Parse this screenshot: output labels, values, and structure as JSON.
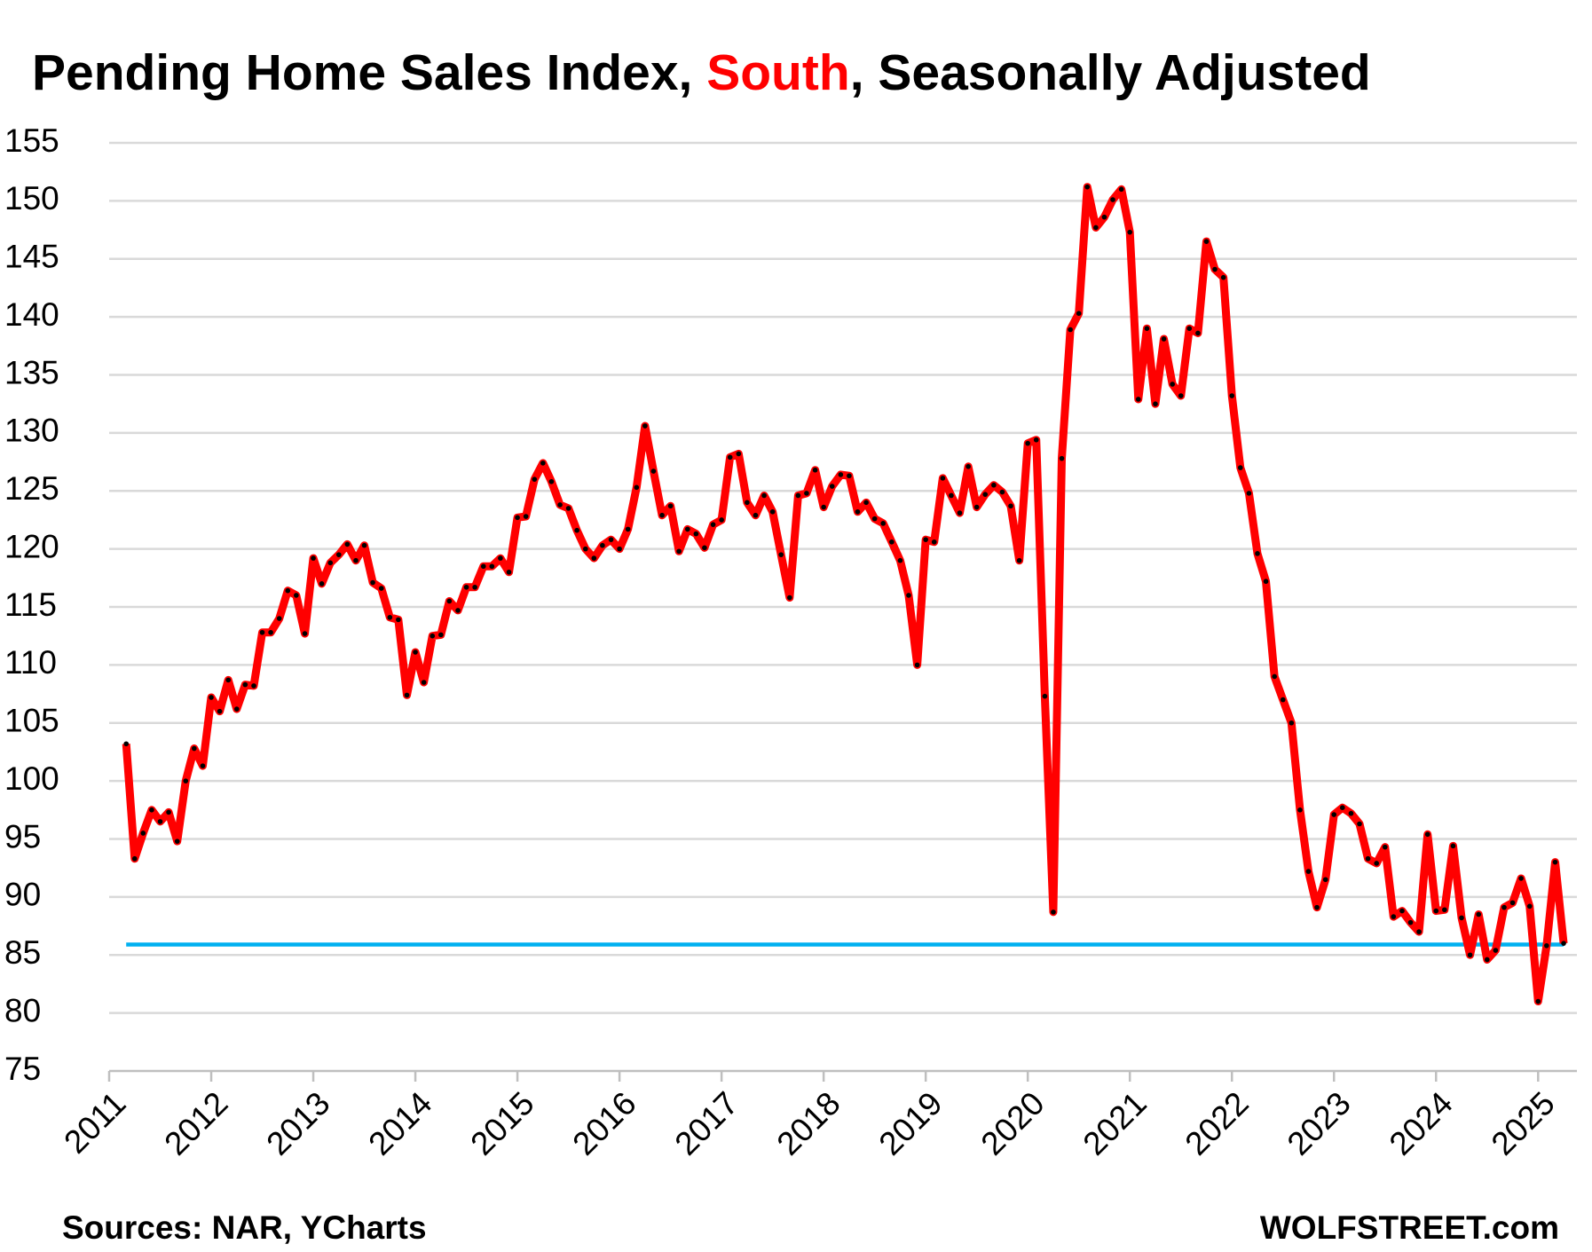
{
  "chart_data": {
    "type": "line",
    "title": [
      {
        "text": "Pending Home Sales Index, ",
        "color": "#000000"
      },
      {
        "text": "South",
        "color": "#ff0000"
      },
      {
        "text": ", Seasonally Adjusted",
        "color": "#000000"
      }
    ],
    "source": "Sources: NAR, YCharts",
    "credit": "WOLFSTREET.com",
    "xlim": [
      2011,
      2025.38
    ],
    "xticks": [
      2011,
      2012,
      2013,
      2014,
      2015,
      2016,
      2017,
      2018,
      2019,
      2020,
      2021,
      2022,
      2023,
      2024,
      2025
    ],
    "ylim": [
      75,
      155
    ],
    "yticks": [
      75,
      80,
      85,
      90,
      95,
      100,
      105,
      110,
      115,
      120,
      125,
      130,
      135,
      140,
      145,
      150,
      155
    ],
    "grid": true,
    "reference_line": {
      "value": 85.9,
      "color": "#00b0f0"
    },
    "x": [
      2011.167,
      2011.25,
      2011.333,
      2011.417,
      2011.5,
      2011.583,
      2011.667,
      2011.75,
      2011.833,
      2011.917,
      2012,
      2012.083,
      2012.167,
      2012.25,
      2012.333,
      2012.417,
      2012.5,
      2012.583,
      2012.667,
      2012.75,
      2012.833,
      2012.917,
      2013,
      2013.083,
      2013.167,
      2013.25,
      2013.333,
      2013.417,
      2013.5,
      2013.583,
      2013.667,
      2013.75,
      2013.833,
      2013.917,
      2014,
      2014.083,
      2014.167,
      2014.25,
      2014.333,
      2014.417,
      2014.5,
      2014.583,
      2014.667,
      2014.75,
      2014.833,
      2014.917,
      2015,
      2015.083,
      2015.167,
      2015.25,
      2015.333,
      2015.417,
      2015.5,
      2015.583,
      2015.667,
      2015.75,
      2015.833,
      2015.917,
      2016,
      2016.083,
      2016.167,
      2016.25,
      2016.333,
      2016.417,
      2016.5,
      2016.583,
      2016.667,
      2016.75,
      2016.833,
      2016.917,
      2017,
      2017.083,
      2017.167,
      2017.25,
      2017.333,
      2017.417,
      2017.5,
      2017.583,
      2017.667,
      2017.75,
      2017.833,
      2017.917,
      2018,
      2018.083,
      2018.167,
      2018.25,
      2018.333,
      2018.417,
      2018.5,
      2018.583,
      2018.667,
      2018.75,
      2018.833,
      2018.917,
      2019,
      2019.083,
      2019.167,
      2019.25,
      2019.333,
      2019.417,
      2019.5,
      2019.583,
      2019.667,
      2019.75,
      2019.833,
      2019.917,
      2020,
      2020.083,
      2020.167,
      2020.25,
      2020.333,
      2020.417,
      2020.5,
      2020.583,
      2020.667,
      2020.75,
      2020.833,
      2020.917,
      2021,
      2021.083,
      2021.167,
      2021.25,
      2021.333,
      2021.417,
      2021.5,
      2021.583,
      2021.667,
      2021.75,
      2021.833,
      2021.917,
      2022,
      2022.083,
      2022.167,
      2022.25,
      2022.333,
      2022.417,
      2022.5,
      2022.583,
      2022.667,
      2022.75,
      2022.833,
      2022.917,
      2023,
      2023.083,
      2023.167,
      2023.25,
      2023.333,
      2023.417,
      2023.5,
      2023.583,
      2023.667,
      2023.75,
      2023.833,
      2023.917,
      2024,
      2024.083,
      2024.167,
      2024.25,
      2024.333,
      2024.417,
      2024.5,
      2024.583,
      2024.667,
      2024.75,
      2024.833,
      2024.917,
      2025,
      2025.083,
      2025.167,
      2025.25
    ],
    "series": [
      {
        "name": "South",
        "color": "#ff0000",
        "marker_color": "#000000",
        "values": [
          103.2,
          93.3,
          95.5,
          97.5,
          96.5,
          97.3,
          94.8,
          100,
          102.8,
          101.3,
          107.2,
          106,
          108.7,
          106.2,
          108.3,
          108.2,
          112.8,
          112.8,
          114,
          116.4,
          116,
          112.7,
          119.2,
          117,
          118.8,
          119.5,
          120.4,
          119,
          120.3,
          117.1,
          116.6,
          114.1,
          113.9,
          107.4,
          111.1,
          108.5,
          112.5,
          112.6,
          115.5,
          114.7,
          116.7,
          116.7,
          118.5,
          118.5,
          119.2,
          118,
          122.7,
          122.8,
          126,
          127.4,
          125.8,
          123.8,
          123.5,
          121.6,
          120,
          119.2,
          120.3,
          120.8,
          120,
          121.7,
          125.3,
          130.6,
          126.7,
          122.9,
          123.7,
          119.8,
          121.7,
          121.3,
          120.1,
          122.1,
          122.5,
          127.9,
          128.2,
          124,
          122.9,
          124.6,
          123.2,
          119.5,
          115.8,
          124.6,
          124.8,
          126.8,
          123.6,
          125.4,
          126.4,
          126.3,
          123.2,
          124,
          122.6,
          122.2,
          120.6,
          119,
          116,
          110,
          120.8,
          120.6,
          126.1,
          124.6,
          123.1,
          127.1,
          123.6,
          124.7,
          125.5,
          124.9,
          123.7,
          119,
          129.1,
          129.4,
          107.3,
          88.7,
          127.8,
          138.9,
          140.3,
          151.2,
          147.7,
          148.6,
          150.1,
          151,
          147.3,
          132.9,
          139,
          132.5,
          138.1,
          134.2,
          133.2,
          139,
          138.6,
          146.5,
          144.1,
          143.4,
          133.2,
          127,
          124.8,
          119.6,
          117.2,
          109,
          107,
          105,
          97.5,
          92.2,
          89.1,
          91.5,
          97.1,
          97.7,
          97.2,
          96.3,
          93.3,
          92.9,
          94.3,
          88.3,
          88.8,
          87.8,
          87,
          95.4,
          88.8,
          88.9,
          94.4,
          88.2,
          85,
          88.5,
          84.6,
          85.4,
          89.1,
          89.5,
          91.6,
          89.2,
          81,
          85.8,
          93,
          86
        ]
      }
    ]
  }
}
